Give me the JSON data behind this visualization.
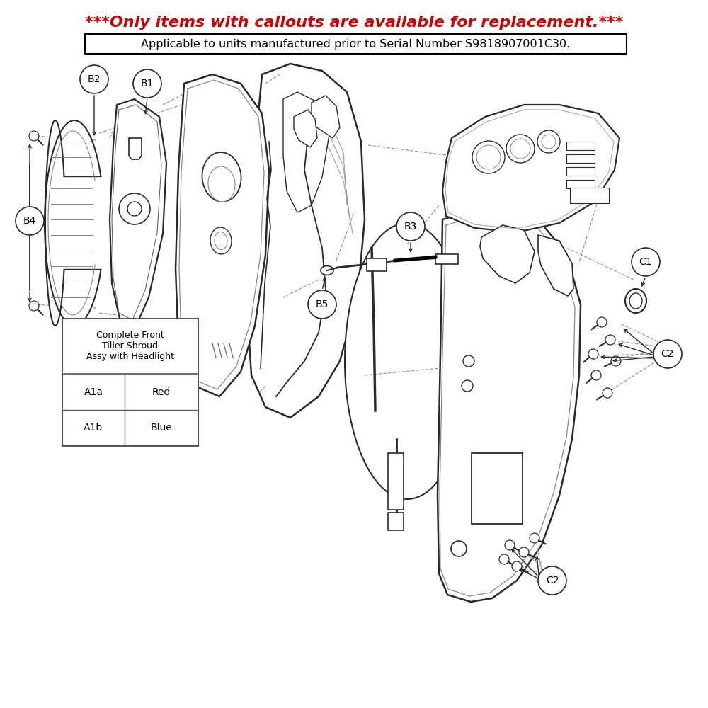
{
  "title_red": "***Only items with callouts are available for replacement.***",
  "subtitle": "Applicable to units manufactured prior to Serial Number S9818907001C30.",
  "title_color": "#CC0000",
  "title_fontsize": 16,
  "subtitle_fontsize": 11.5,
  "bg_color": "#FFFFFF",
  "table_header": "Complete Front\nTiller Shroud\nAssy with Headlight",
  "table_rows": [
    [
      "A1a",
      "Red"
    ],
    [
      "A1b",
      "Blue"
    ]
  ],
  "line_color": "#2a2a2a",
  "light_line": "#888888"
}
